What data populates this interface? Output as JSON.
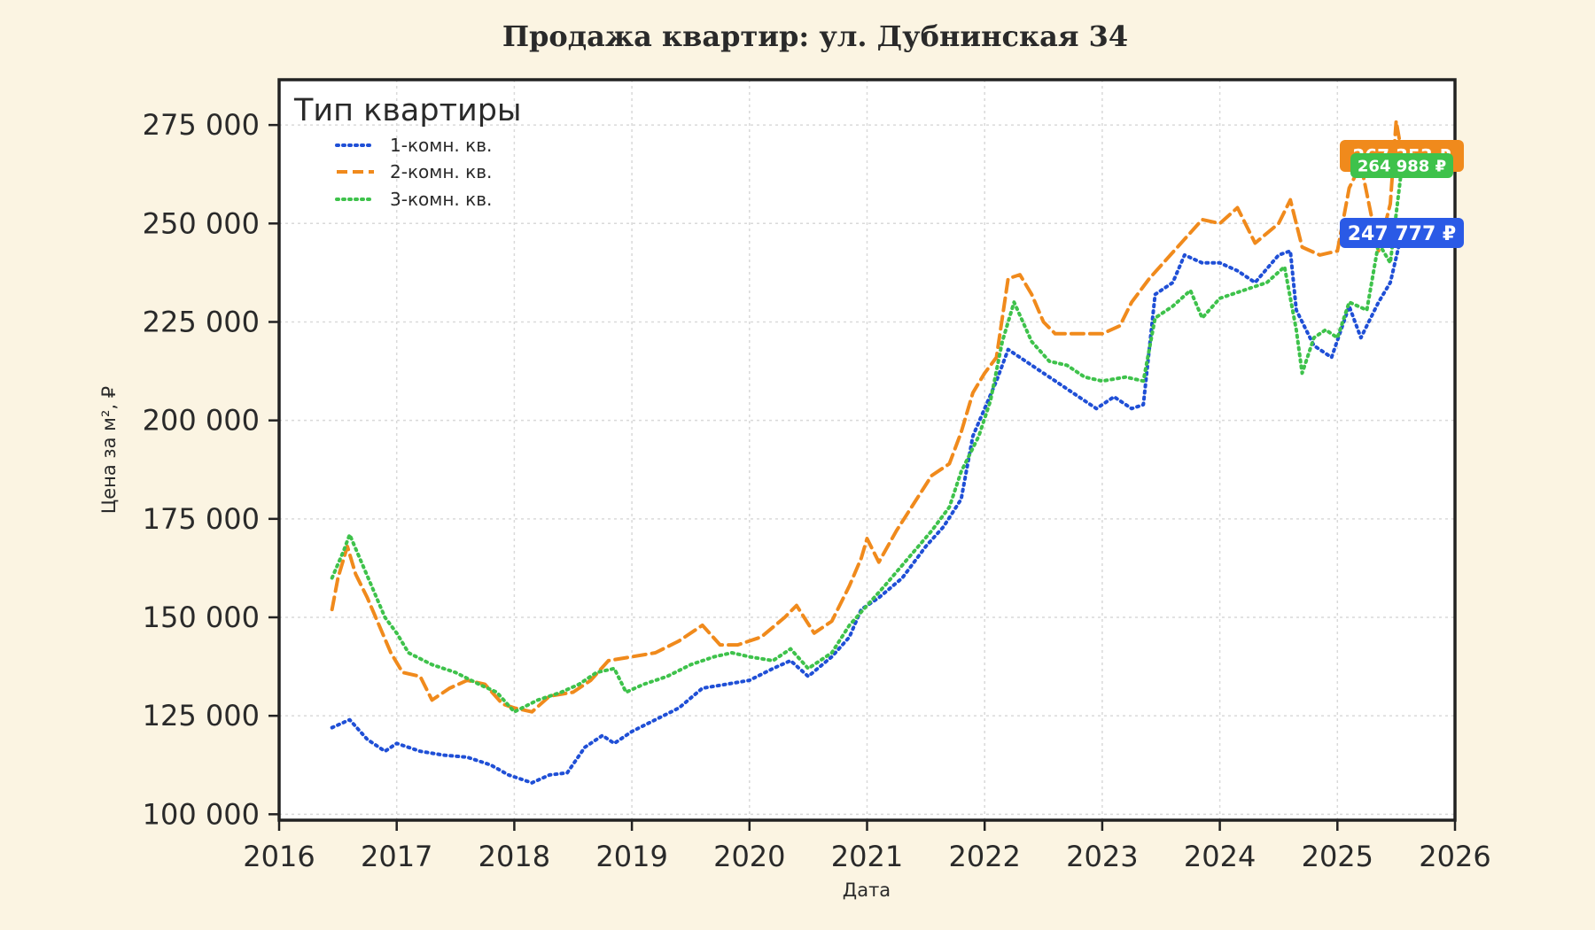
{
  "chart_data": {
    "type": "line",
    "title": "Продажа квартир: ул. Дубнинская 34",
    "xlabel": "Дата",
    "ylabel": "Цена за м², ₽",
    "xlim": [
      2016,
      2026
    ],
    "ylim": [
      98500,
      286500
    ],
    "x_ticks": [
      2016,
      2017,
      2018,
      2019,
      2020,
      2021,
      2022,
      2023,
      2024,
      2025,
      2026
    ],
    "y_ticks": [
      {
        "value": 100000,
        "label": "100 000"
      },
      {
        "value": 125000,
        "label": "125 000"
      },
      {
        "value": 150000,
        "label": "150 000"
      },
      {
        "value": 175000,
        "label": "175 000"
      },
      {
        "value": 200000,
        "label": "200 000"
      },
      {
        "value": 225000,
        "label": "225 000"
      },
      {
        "value": 250000,
        "label": "250 000"
      },
      {
        "value": 275000,
        "label": "275 000"
      }
    ],
    "grid": true,
    "legend": {
      "title": "Тип квартиры",
      "position": "top-left"
    },
    "series": [
      {
        "name": "1-комн. кв.",
        "color": "#1f4fd6",
        "dash": "dotted",
        "points": [
          [
            2016.45,
            122000
          ],
          [
            2016.6,
            124000
          ],
          [
            2016.75,
            119000
          ],
          [
            2016.9,
            116000
          ],
          [
            2017.0,
            118000
          ],
          [
            2017.2,
            116000
          ],
          [
            2017.4,
            115000
          ],
          [
            2017.6,
            114500
          ],
          [
            2017.8,
            112500
          ],
          [
            2017.95,
            110000
          ],
          [
            2018.15,
            108000
          ],
          [
            2018.3,
            110000
          ],
          [
            2018.45,
            110500
          ],
          [
            2018.6,
            117000
          ],
          [
            2018.75,
            120000
          ],
          [
            2018.85,
            118000
          ],
          [
            2019.0,
            121000
          ],
          [
            2019.2,
            124000
          ],
          [
            2019.4,
            127000
          ],
          [
            2019.6,
            132000
          ],
          [
            2019.8,
            133000
          ],
          [
            2020.0,
            134000
          ],
          [
            2020.2,
            137000
          ],
          [
            2020.35,
            139000
          ],
          [
            2020.5,
            135000
          ],
          [
            2020.7,
            140000
          ],
          [
            2020.85,
            145000
          ],
          [
            2020.95,
            152000
          ],
          [
            2021.1,
            155000
          ],
          [
            2021.3,
            160000
          ],
          [
            2021.5,
            168000
          ],
          [
            2021.65,
            173000
          ],
          [
            2021.8,
            180000
          ],
          [
            2021.9,
            196000
          ],
          [
            2022.0,
            203000
          ],
          [
            2022.1,
            210000
          ],
          [
            2022.2,
            218000
          ],
          [
            2022.35,
            215000
          ],
          [
            2022.5,
            212000
          ],
          [
            2022.65,
            209000
          ],
          [
            2022.8,
            206000
          ],
          [
            2022.95,
            203000
          ],
          [
            2023.1,
            206000
          ],
          [
            2023.25,
            203000
          ],
          [
            2023.35,
            204000
          ],
          [
            2023.45,
            232000
          ],
          [
            2023.6,
            235000
          ],
          [
            2023.7,
            242000
          ],
          [
            2023.85,
            240000
          ],
          [
            2024.0,
            240000
          ],
          [
            2024.15,
            238000
          ],
          [
            2024.3,
            235000
          ],
          [
            2024.5,
            242000
          ],
          [
            2024.6,
            243000
          ],
          [
            2024.65,
            228000
          ],
          [
            2024.8,
            219000
          ],
          [
            2024.95,
            216000
          ],
          [
            2025.1,
            229000
          ],
          [
            2025.2,
            221000
          ],
          [
            2025.35,
            230000
          ],
          [
            2025.45,
            235000
          ],
          [
            2025.55,
            247777
          ]
        ]
      },
      {
        "name": "2-комн. кв.",
        "color": "#f08a1c",
        "dash": "dashed",
        "points": [
          [
            2016.45,
            152000
          ],
          [
            2016.5,
            160000
          ],
          [
            2016.58,
            168000
          ],
          [
            2016.65,
            161000
          ],
          [
            2016.75,
            155000
          ],
          [
            2016.85,
            148000
          ],
          [
            2016.95,
            141000
          ],
          [
            2017.05,
            136000
          ],
          [
            2017.2,
            135000
          ],
          [
            2017.3,
            129000
          ],
          [
            2017.45,
            132000
          ],
          [
            2017.6,
            134000
          ],
          [
            2017.75,
            133000
          ],
          [
            2017.9,
            128000
          ],
          [
            2018.0,
            127000
          ],
          [
            2018.15,
            126000
          ],
          [
            2018.3,
            130000
          ],
          [
            2018.5,
            131000
          ],
          [
            2018.65,
            134000
          ],
          [
            2018.8,
            139000
          ],
          [
            2019.0,
            140000
          ],
          [
            2019.2,
            141000
          ],
          [
            2019.4,
            144000
          ],
          [
            2019.6,
            148000
          ],
          [
            2019.75,
            143000
          ],
          [
            2019.9,
            143000
          ],
          [
            2020.1,
            145000
          ],
          [
            2020.3,
            150000
          ],
          [
            2020.4,
            153000
          ],
          [
            2020.55,
            146000
          ],
          [
            2020.7,
            149000
          ],
          [
            2020.85,
            158000
          ],
          [
            2020.95,
            165000
          ],
          [
            2021.0,
            170000
          ],
          [
            2021.1,
            164000
          ],
          [
            2021.25,
            172000
          ],
          [
            2021.4,
            179000
          ],
          [
            2021.55,
            186000
          ],
          [
            2021.7,
            189000
          ],
          [
            2021.8,
            197000
          ],
          [
            2021.9,
            207000
          ],
          [
            2022.0,
            212000
          ],
          [
            2022.1,
            216000
          ],
          [
            2022.2,
            236000
          ],
          [
            2022.3,
            237000
          ],
          [
            2022.4,
            232000
          ],
          [
            2022.5,
            225000
          ],
          [
            2022.6,
            222000
          ],
          [
            2022.8,
            222000
          ],
          [
            2023.0,
            222000
          ],
          [
            2023.15,
            224000
          ],
          [
            2023.25,
            230000
          ],
          [
            2023.4,
            236000
          ],
          [
            2023.55,
            241000
          ],
          [
            2023.7,
            246000
          ],
          [
            2023.85,
            251000
          ],
          [
            2024.0,
            250000
          ],
          [
            2024.15,
            254000
          ],
          [
            2024.3,
            245000
          ],
          [
            2024.5,
            250000
          ],
          [
            2024.6,
            256000
          ],
          [
            2024.7,
            244000
          ],
          [
            2024.85,
            242000
          ],
          [
            2025.0,
            243000
          ],
          [
            2025.1,
            259000
          ],
          [
            2025.2,
            265000
          ],
          [
            2025.35,
            243000
          ],
          [
            2025.45,
            255000
          ],
          [
            2025.5,
            276000
          ],
          [
            2025.55,
            267353
          ]
        ]
      },
      {
        "name": "3-комн. кв.",
        "color": "#3ec24b",
        "dash": "dotted",
        "points": [
          [
            2016.45,
            160000
          ],
          [
            2016.55,
            167000
          ],
          [
            2016.6,
            171000
          ],
          [
            2016.7,
            164000
          ],
          [
            2016.8,
            157000
          ],
          [
            2016.9,
            150000
          ],
          [
            2017.0,
            146000
          ],
          [
            2017.1,
            141000
          ],
          [
            2017.3,
            138000
          ],
          [
            2017.5,
            136000
          ],
          [
            2017.7,
            133000
          ],
          [
            2017.85,
            131000
          ],
          [
            2018.0,
            126000
          ],
          [
            2018.2,
            129000
          ],
          [
            2018.4,
            131000
          ],
          [
            2018.55,
            133000
          ],
          [
            2018.7,
            136000
          ],
          [
            2018.85,
            137000
          ],
          [
            2018.95,
            131000
          ],
          [
            2019.1,
            133000
          ],
          [
            2019.3,
            135000
          ],
          [
            2019.5,
            138000
          ],
          [
            2019.7,
            140000
          ],
          [
            2019.85,
            141000
          ],
          [
            2020.0,
            140000
          ],
          [
            2020.2,
            139000
          ],
          [
            2020.35,
            142000
          ],
          [
            2020.5,
            137000
          ],
          [
            2020.7,
            141000
          ],
          [
            2020.85,
            148000
          ],
          [
            2021.0,
            153000
          ],
          [
            2021.15,
            158000
          ],
          [
            2021.35,
            165000
          ],
          [
            2021.55,
            172000
          ],
          [
            2021.7,
            178000
          ],
          [
            2021.8,
            187000
          ],
          [
            2021.95,
            196000
          ],
          [
            2022.05,
            205000
          ],
          [
            2022.15,
            220000
          ],
          [
            2022.25,
            230000
          ],
          [
            2022.4,
            220000
          ],
          [
            2022.55,
            215000
          ],
          [
            2022.7,
            214000
          ],
          [
            2022.85,
            211000
          ],
          [
            2023.0,
            210000
          ],
          [
            2023.2,
            211000
          ],
          [
            2023.35,
            210000
          ],
          [
            2023.45,
            226000
          ],
          [
            2023.6,
            229000
          ],
          [
            2023.75,
            233000
          ],
          [
            2023.85,
            226000
          ],
          [
            2024.0,
            231000
          ],
          [
            2024.2,
            233000
          ],
          [
            2024.4,
            235000
          ],
          [
            2024.55,
            239000
          ],
          [
            2024.65,
            223000
          ],
          [
            2024.7,
            212000
          ],
          [
            2024.8,
            221000
          ],
          [
            2024.9,
            223000
          ],
          [
            2025.0,
            221000
          ],
          [
            2025.1,
            230000
          ],
          [
            2025.25,
            228000
          ],
          [
            2025.35,
            245000
          ],
          [
            2025.45,
            240000
          ],
          [
            2025.55,
            264988
          ]
        ]
      }
    ],
    "last_value_labels": [
      {
        "series": "2-комн. кв.",
        "value": 267353,
        "text": "267 353 ₽",
        "color": "#f08a1c"
      },
      {
        "series": "3-комн. кв.",
        "value": 264988,
        "text": "264 988 ₽",
        "color": "#3ec24b"
      },
      {
        "series": "1-комн. кв.",
        "value": 247777,
        "text": "247 777 ₽",
        "color": "#2a5ae6"
      }
    ]
  }
}
